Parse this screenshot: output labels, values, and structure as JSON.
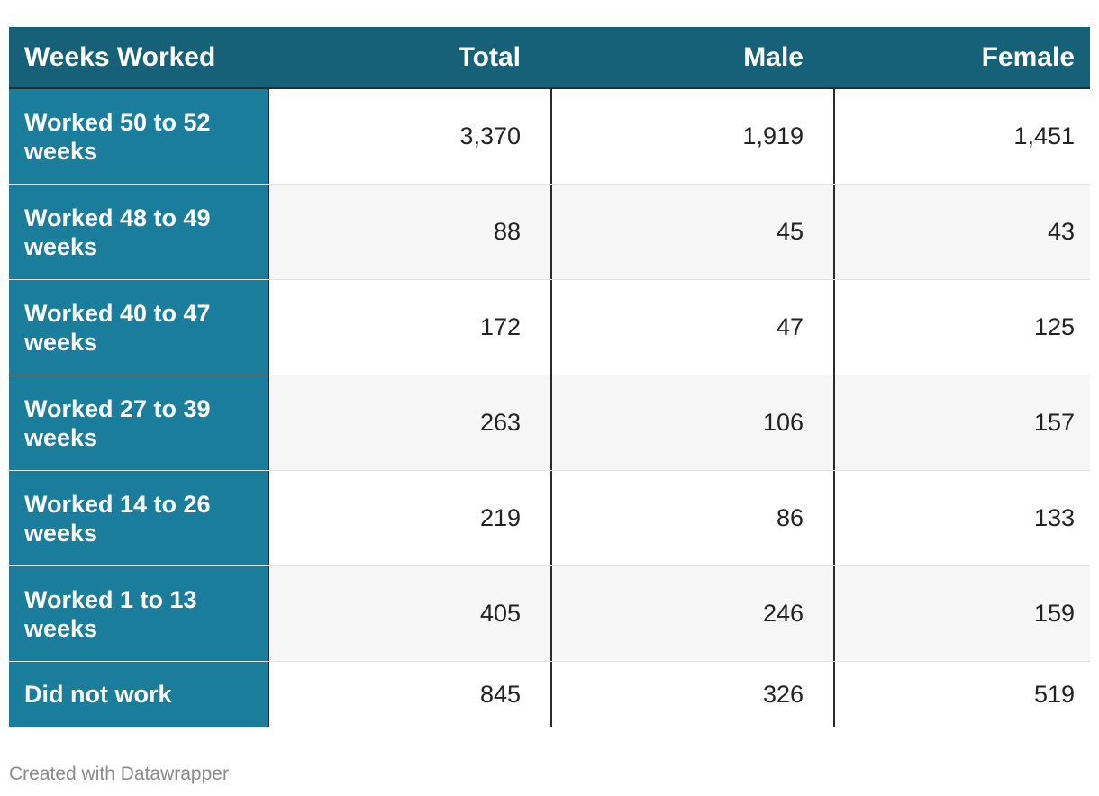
{
  "chart_data": {
    "type": "table",
    "columns": [
      "Weeks Worked",
      "Total",
      "Male",
      "Female"
    ],
    "rows": [
      {
        "label": "Worked 50 to 52 weeks",
        "total": "3,370",
        "male": "1,919",
        "female": "1,451"
      },
      {
        "label": "Worked 48 to 49 weeks",
        "total": "88",
        "male": "45",
        "female": "43"
      },
      {
        "label": "Worked 40 to 47 weeks",
        "total": "172",
        "male": "47",
        "female": "125"
      },
      {
        "label": "Worked 27 to 39 weeks",
        "total": "263",
        "male": "106",
        "female": "157"
      },
      {
        "label": "Worked 14 to 26 weeks",
        "total": "219",
        "male": "86",
        "female": "133"
      },
      {
        "label": "Worked 1 to 13 weeks",
        "total": "405",
        "male": "246",
        "female": "159"
      },
      {
        "label": "Did not work",
        "total": "845",
        "male": "326",
        "female": "519"
      }
    ]
  },
  "footer": "Created with Datawrapper",
  "colors": {
    "header_bg": "#176178",
    "label_bg": "#1b7d9c",
    "alt_row_bg": "#f6f6f6"
  }
}
